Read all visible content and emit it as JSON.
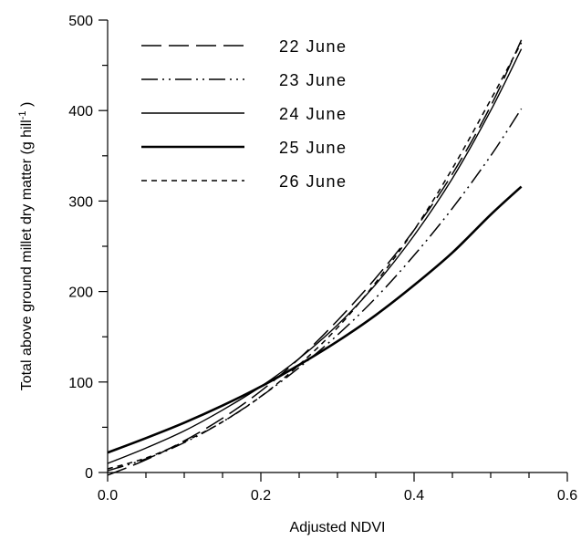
{
  "chart_data": {
    "type": "line",
    "title": "",
    "xlabel": "Adjusted NDVI",
    "ylabel": "Total above ground millet dry matter (g hill",
    "ylabel_sup": "-1",
    "ylabel_close": " )",
    "xlim": [
      0.0,
      0.6
    ],
    "ylim": [
      0,
      500
    ],
    "x_ticks": [
      "0.0",
      "0.2",
      "0.4",
      "0.6"
    ],
    "y_ticks": [
      "0",
      "100",
      "200",
      "300",
      "400",
      "500"
    ],
    "grid": false,
    "legend_position": "top-left",
    "series": [
      {
        "name": "22 June",
        "style": "long-dash",
        "x": [
          0.0,
          0.05,
          0.1,
          0.15,
          0.2,
          0.25,
          0.3,
          0.35,
          0.4,
          0.45,
          0.5,
          0.54
        ],
        "y": [
          -3,
          14,
          35,
          60,
          90,
          126,
          168,
          215,
          268,
          330,
          405,
          478
        ]
      },
      {
        "name": "23 June",
        "style": "dash-dot-dot",
        "x": [
          0.0,
          0.05,
          0.1,
          0.15,
          0.2,
          0.25,
          0.3,
          0.35,
          0.4,
          0.45,
          0.5,
          0.54
        ],
        "y": [
          2,
          15,
          33,
          56,
          84,
          116,
          152,
          193,
          240,
          292,
          350,
          402
        ]
      },
      {
        "name": "24 June",
        "style": "solid-thin",
        "x": [
          0.0,
          0.05,
          0.1,
          0.15,
          0.2,
          0.25,
          0.3,
          0.35,
          0.4,
          0.45,
          0.5,
          0.54
        ],
        "y": [
          10,
          27,
          46,
          69,
          95,
          126,
          163,
          208,
          262,
          325,
          400,
          468
        ]
      },
      {
        "name": "25 June",
        "style": "solid-thick",
        "x": [
          0.0,
          0.05,
          0.1,
          0.15,
          0.2,
          0.25,
          0.3,
          0.35,
          0.4,
          0.45,
          0.5,
          0.54
        ],
        "y": [
          22,
          38,
          55,
          74,
          95,
          119,
          145,
          174,
          207,
          243,
          285,
          316
        ]
      },
      {
        "name": "26 June",
        "style": "short-dash",
        "x": [
          0.0,
          0.05,
          0.1,
          0.15,
          0.2,
          0.25,
          0.3,
          0.35,
          0.4,
          0.45,
          0.5,
          0.54
        ],
        "y": [
          4,
          16,
          34,
          56,
          84,
          119,
          160,
          210,
          268,
          336,
          412,
          475
        ]
      }
    ]
  }
}
